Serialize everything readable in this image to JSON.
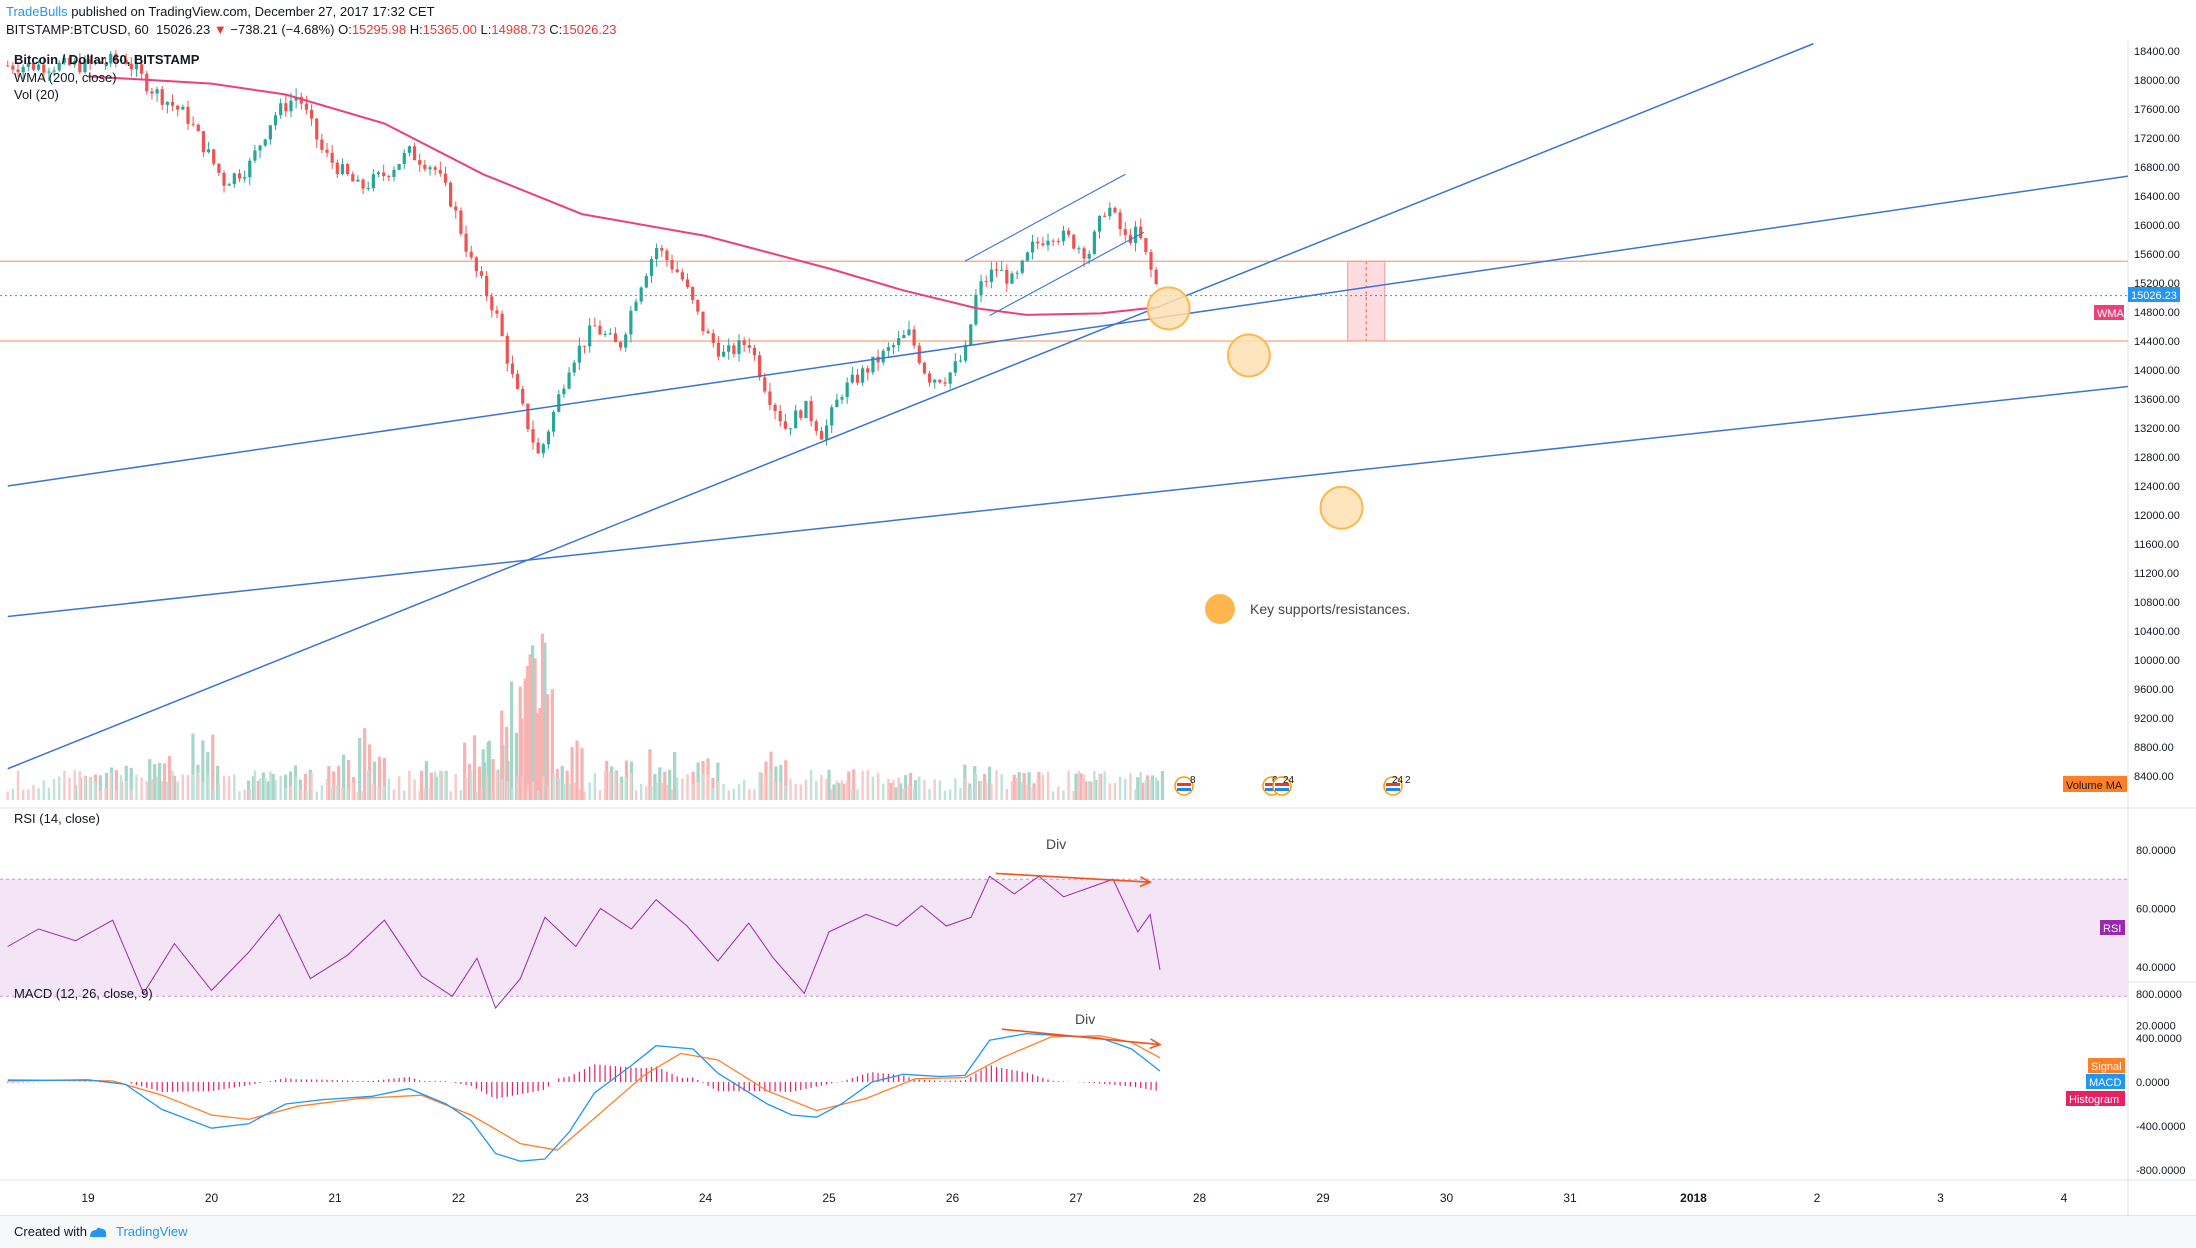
{
  "header": {
    "publisher": "TradeBulls",
    "published_text": "published on TradingView.com, December 27, 2017 17:32 CET",
    "symbol": "BITSTAMP:BTCUSD, 60",
    "last_price": "15026.23",
    "change_arrow": "▼",
    "change_text": "−738.21 (−4.68%)",
    "open_label": "O:",
    "open_value": "15295.98",
    "high_label": "H:",
    "high_value": "15365.00",
    "low_label": "L:",
    "low_value": "14988.73",
    "close_label": "C:",
    "close_value": "15026.23"
  },
  "legend": {
    "title": "Bitcoin / Dollar, 60, BITSTAMP",
    "wma": "WMA (200, close)",
    "vol": "Vol (20)",
    "rsi": "RSI (14, close)",
    "macd": "MACD (12, 26, close, 9)"
  },
  "annotations": {
    "key_levels": "Key supports/resistances.",
    "rsi_div": "Div",
    "macd_div": "Div"
  },
  "badges": {
    "last_price": "15026.23",
    "wma": "WMA",
    "volume_ma": "Volume MA",
    "rsi": "RSI",
    "signal": "Signal",
    "macd": "MACD",
    "histogram": "Histogram"
  },
  "events": [
    "8",
    "6",
    "24",
    "24",
    "2"
  ],
  "footer": {
    "created_with": "Created with",
    "brand": "TradingView"
  },
  "colors": {
    "up": "#26a69a",
    "down": "#ef5350",
    "wma": "#ec407a",
    "trend": "#3b73d6",
    "hline": "#f4a27c",
    "rsi": "#9c27b0",
    "rsi_bg": "#f3e5f5",
    "macd": "#2196f3",
    "signal": "#ff7f27",
    "hist": "#e91e63",
    "circle": "#ffb74d"
  },
  "chart_data": [
    {
      "type": "candlestick",
      "title": "Bitcoin / Dollar, 60, BITSTAMP",
      "x_tick_labels": [
        "19",
        "20",
        "21",
        "22",
        "23",
        "24",
        "25",
        "26",
        "27",
        "28",
        "29",
        "30",
        "31",
        "2018",
        "2",
        "3",
        "4"
      ],
      "y_tick_labels": [
        "18400.00",
        "18000.00",
        "17600.00",
        "17200.00",
        "16800.00",
        "16400.00",
        "16000.00",
        "15600.00",
        "15200.00",
        "14800.00",
        "14400.00",
        "14000.00",
        "13600.00",
        "13200.00",
        "12800.00",
        "12400.00",
        "12000.00",
        "11600.00",
        "11200.00",
        "10800.00",
        "10400.00",
        "10000.00",
        "9600.00",
        "9200.00",
        "8800.00",
        "8400.00"
      ],
      "ylim": [
        8400,
        18400
      ],
      "close_path": [
        {
          "x": 19.0,
          "y": 18200
        },
        {
          "x": 19.3,
          "y": 18300
        },
        {
          "x": 19.5,
          "y": 17900
        },
        {
          "x": 19.8,
          "y": 17500
        },
        {
          "x": 20.1,
          "y": 16600
        },
        {
          "x": 20.3,
          "y": 16800
        },
        {
          "x": 20.5,
          "y": 17500
        },
        {
          "x": 20.7,
          "y": 17800
        },
        {
          "x": 20.9,
          "y": 17000
        },
        {
          "x": 21.2,
          "y": 16500
        },
        {
          "x": 21.4,
          "y": 16700
        },
        {
          "x": 21.6,
          "y": 17000
        },
        {
          "x": 21.8,
          "y": 16800
        },
        {
          "x": 21.95,
          "y": 16300
        },
        {
          "x": 22.1,
          "y": 15500
        },
        {
          "x": 22.3,
          "y": 14800
        },
        {
          "x": 22.45,
          "y": 13800
        },
        {
          "x": 22.55,
          "y": 13300
        },
        {
          "x": 22.65,
          "y": 12800
        },
        {
          "x": 22.75,
          "y": 13300
        },
        {
          "x": 22.9,
          "y": 14100
        },
        {
          "x": 23.1,
          "y": 14600
        },
        {
          "x": 23.3,
          "y": 14300
        },
        {
          "x": 23.45,
          "y": 15100
        },
        {
          "x": 23.6,
          "y": 15700
        },
        {
          "x": 23.8,
          "y": 15300
        },
        {
          "x": 24.0,
          "y": 14500
        },
        {
          "x": 24.15,
          "y": 14200
        },
        {
          "x": 24.35,
          "y": 14400
        },
        {
          "x": 24.5,
          "y": 13700
        },
        {
          "x": 24.65,
          "y": 13200
        },
        {
          "x": 24.8,
          "y": 13500
        },
        {
          "x": 24.95,
          "y": 13100
        },
        {
          "x": 25.1,
          "y": 13700
        },
        {
          "x": 25.3,
          "y": 14000
        },
        {
          "x": 25.5,
          "y": 14300
        },
        {
          "x": 25.65,
          "y": 14500
        },
        {
          "x": 25.8,
          "y": 13900
        },
        {
          "x": 25.95,
          "y": 13900
        },
        {
          "x": 26.1,
          "y": 14200
        },
        {
          "x": 26.2,
          "y": 15100
        },
        {
          "x": 26.35,
          "y": 15400
        },
        {
          "x": 26.5,
          "y": 15200
        },
        {
          "x": 26.65,
          "y": 15700
        },
        {
          "x": 26.8,
          "y": 15900
        },
        {
          "x": 26.95,
          "y": 15800
        },
        {
          "x": 27.1,
          "y": 15600
        },
        {
          "x": 27.25,
          "y": 16300
        },
        {
          "x": 27.4,
          "y": 15800
        },
        {
          "x": 27.5,
          "y": 15900
        },
        {
          "x": 27.6,
          "y": 15400
        },
        {
          "x": 27.68,
          "y": 15026
        }
      ],
      "wma_200": [
        {
          "x": 19.0,
          "y": 18050
        },
        {
          "x": 20.0,
          "y": 17950
        },
        {
          "x": 20.6,
          "y": 17800
        },
        {
          "x": 21.4,
          "y": 17400
        },
        {
          "x": 22.2,
          "y": 16700
        },
        {
          "x": 23.0,
          "y": 16150
        },
        {
          "x": 24.0,
          "y": 15850
        },
        {
          "x": 25.0,
          "y": 15400
        },
        {
          "x": 25.6,
          "y": 15100
        },
        {
          "x": 26.2,
          "y": 14850
        },
        {
          "x": 26.6,
          "y": 14760
        },
        {
          "x": 27.2,
          "y": 14780
        },
        {
          "x": 27.68,
          "y": 14870
        }
      ],
      "horizontal_levels": [
        15500,
        14400
      ],
      "last_price_level": 15026.23,
      "trend_lines": [
        {
          "from": {
            "x": 18.35,
            "y": 8500
          },
          "to": {
            "x": 28.0,
            "y": 15100
          }
        },
        {
          "from": {
            "x": 18.35,
            "y": 12400
          },
          "to": {
            "x": 30.8,
            "y": 15500
          }
        },
        {
          "from": {
            "x": 18.35,
            "y": 10600
          },
          "to": {
            "x": 30.8,
            "y": 12900
          }
        }
      ],
      "channel_lines": [
        {
          "from": {
            "x": 26.1,
            "y": 15500
          },
          "to": {
            "x": 27.4,
            "y": 16700
          }
        },
        {
          "from": {
            "x": 26.3,
            "y": 14750
          },
          "to": {
            "x": 27.55,
            "y": 15900
          }
        }
      ],
      "key_level_circles": [
        {
          "x": 27.75,
          "y": 14850
        },
        {
          "x": 28.4,
          "y": 14200
        },
        {
          "x": 29.15,
          "y": 12100
        }
      ],
      "target_box": {
        "x": [
          29.2,
          29.5
        ],
        "y": [
          14400,
          15500
        ]
      }
    },
    {
      "type": "bar",
      "title": "Vol (20)",
      "bars": [
        {
          "x": 19.0,
          "v": 0.35,
          "dir": "down"
        },
        {
          "x": 19.25,
          "v": 0.45,
          "dir": "down"
        },
        {
          "x": 19.6,
          "v": 0.65,
          "dir": "down"
        },
        {
          "x": 19.95,
          "v": 0.85,
          "dir": "down"
        },
        {
          "x": 20.4,
          "v": 0.4,
          "dir": "up"
        },
        {
          "x": 20.7,
          "v": 0.55,
          "dir": "down"
        },
        {
          "x": 21.05,
          "v": 0.6,
          "dir": "down"
        },
        {
          "x": 21.3,
          "v": 0.95,
          "dir": "up"
        },
        {
          "x": 21.8,
          "v": 0.5,
          "dir": "down"
        },
        {
          "x": 22.15,
          "v": 0.9,
          "dir": "down"
        },
        {
          "x": 22.3,
          "v": 0.75,
          "dir": "up"
        },
        {
          "x": 22.45,
          "v": 1.6,
          "dir": "up"
        },
        {
          "x": 22.6,
          "v": 2.0,
          "dir": "down"
        },
        {
          "x": 22.66,
          "v": 2.4,
          "dir": "down"
        },
        {
          "x": 22.9,
          "v": 0.8,
          "dir": "up"
        },
        {
          "x": 23.3,
          "v": 0.5,
          "dir": "up"
        },
        {
          "x": 23.65,
          "v": 0.7,
          "dir": "up"
        },
        {
          "x": 24.0,
          "v": 0.55,
          "dir": "down"
        },
        {
          "x": 24.55,
          "v": 0.65,
          "dir": "down"
        },
        {
          "x": 25.1,
          "v": 0.4,
          "dir": "up"
        },
        {
          "x": 25.6,
          "v": 0.35,
          "dir": "up"
        },
        {
          "x": 26.2,
          "v": 0.45,
          "dir": "up"
        },
        {
          "x": 26.6,
          "v": 0.4,
          "dir": "up"
        },
        {
          "x": 27.1,
          "v": 0.35,
          "dir": "down"
        },
        {
          "x": 27.6,
          "v": 0.4,
          "dir": "down"
        }
      ]
    },
    {
      "type": "line",
      "title": "RSI (14, close)",
      "y_tick_labels": [
        "80.0000",
        "60.0000",
        "40.0000",
        "20.0000"
      ],
      "ylim": [
        20,
        80
      ],
      "band": [
        30,
        70
      ],
      "series": [
        {
          "values": [
            {
              "x": 18.35,
              "y": 47
            },
            {
              "x": 18.6,
              "y": 53
            },
            {
              "x": 18.9,
              "y": 49
            },
            {
              "x": 19.2,
              "y": 56
            },
            {
              "x": 19.45,
              "y": 31
            },
            {
              "x": 19.7,
              "y": 48
            },
            {
              "x": 20.0,
              "y": 32
            },
            {
              "x": 20.3,
              "y": 45
            },
            {
              "x": 20.55,
              "y": 58
            },
            {
              "x": 20.8,
              "y": 36
            },
            {
              "x": 21.1,
              "y": 44
            },
            {
              "x": 21.4,
              "y": 56
            },
            {
              "x": 21.7,
              "y": 37
            },
            {
              "x": 21.95,
              "y": 30
            },
            {
              "x": 22.15,
              "y": 43
            },
            {
              "x": 22.3,
              "y": 26
            },
            {
              "x": 22.5,
              "y": 36
            },
            {
              "x": 22.7,
              "y": 57
            },
            {
              "x": 22.95,
              "y": 47
            },
            {
              "x": 23.15,
              "y": 60
            },
            {
              "x": 23.4,
              "y": 53
            },
            {
              "x": 23.6,
              "y": 63
            },
            {
              "x": 23.85,
              "y": 54
            },
            {
              "x": 24.1,
              "y": 42
            },
            {
              "x": 24.35,
              "y": 55
            },
            {
              "x": 24.55,
              "y": 43
            },
            {
              "x": 24.8,
              "y": 31
            },
            {
              "x": 25.0,
              "y": 52
            },
            {
              "x": 25.3,
              "y": 58
            },
            {
              "x": 25.55,
              "y": 54
            },
            {
              "x": 25.75,
              "y": 61
            },
            {
              "x": 25.95,
              "y": 54
            },
            {
              "x": 26.15,
              "y": 57
            },
            {
              "x": 26.3,
              "y": 71
            },
            {
              "x": 26.5,
              "y": 65
            },
            {
              "x": 26.7,
              "y": 71
            },
            {
              "x": 26.9,
              "y": 64
            },
            {
              "x": 27.1,
              "y": 67
            },
            {
              "x": 27.3,
              "y": 70
            },
            {
              "x": 27.5,
              "y": 52
            },
            {
              "x": 27.6,
              "y": 58
            },
            {
              "x": 27.68,
              "y": 39
            }
          ]
        }
      ],
      "divergence_line": {
        "from": {
          "x": 26.35,
          "y": 72
        },
        "to": {
          "x": 27.6,
          "y": 69
        }
      }
    },
    {
      "type": "line",
      "title": "MACD (12, 26, close, 9)",
      "y_tick_labels": [
        "800.0000",
        "400.0000",
        "0.0000",
        "-400.0000",
        "-800.0000"
      ],
      "ylim": [
        -800,
        800
      ],
      "series": [
        {
          "name": "MACD",
          "values": [
            {
              "x": 18.35,
              "y": 10
            },
            {
              "x": 19.0,
              "y": 20
            },
            {
              "x": 19.3,
              "y": -20
            },
            {
              "x": 19.6,
              "y": -250
            },
            {
              "x": 20.0,
              "y": -420
            },
            {
              "x": 20.3,
              "y": -380
            },
            {
              "x": 20.6,
              "y": -200
            },
            {
              "x": 20.9,
              "y": -160
            },
            {
              "x": 21.3,
              "y": -130
            },
            {
              "x": 21.6,
              "y": -60
            },
            {
              "x": 21.9,
              "y": -200
            },
            {
              "x": 22.1,
              "y": -350
            },
            {
              "x": 22.3,
              "y": -650
            },
            {
              "x": 22.5,
              "y": -720
            },
            {
              "x": 22.7,
              "y": -700
            },
            {
              "x": 22.9,
              "y": -450
            },
            {
              "x": 23.1,
              "y": -100
            },
            {
              "x": 23.4,
              "y": 150
            },
            {
              "x": 23.6,
              "y": 330
            },
            {
              "x": 23.9,
              "y": 300
            },
            {
              "x": 24.1,
              "y": 80
            },
            {
              "x": 24.3,
              "y": -60
            },
            {
              "x": 24.5,
              "y": -200
            },
            {
              "x": 24.7,
              "y": -300
            },
            {
              "x": 24.9,
              "y": -320
            },
            {
              "x": 25.1,
              "y": -200
            },
            {
              "x": 25.35,
              "y": 0
            },
            {
              "x": 25.6,
              "y": 70
            },
            {
              "x": 25.9,
              "y": 50
            },
            {
              "x": 26.1,
              "y": 60
            },
            {
              "x": 26.3,
              "y": 380
            },
            {
              "x": 26.6,
              "y": 440
            },
            {
              "x": 26.9,
              "y": 420
            },
            {
              "x": 27.2,
              "y": 400
            },
            {
              "x": 27.45,
              "y": 300
            },
            {
              "x": 27.68,
              "y": 100
            }
          ]
        },
        {
          "name": "Signal",
          "values": [
            {
              "x": 18.35,
              "y": 20
            },
            {
              "x": 19.2,
              "y": 10
            },
            {
              "x": 19.6,
              "y": -120
            },
            {
              "x": 20.0,
              "y": -300
            },
            {
              "x": 20.3,
              "y": -340
            },
            {
              "x": 20.7,
              "y": -220
            },
            {
              "x": 21.2,
              "y": -150
            },
            {
              "x": 21.7,
              "y": -120
            },
            {
              "x": 22.1,
              "y": -300
            },
            {
              "x": 22.5,
              "y": -560
            },
            {
              "x": 22.8,
              "y": -620
            },
            {
              "x": 23.1,
              "y": -330
            },
            {
              "x": 23.5,
              "y": 60
            },
            {
              "x": 23.8,
              "y": 260
            },
            {
              "x": 24.1,
              "y": 200
            },
            {
              "x": 24.5,
              "y": -80
            },
            {
              "x": 24.9,
              "y": -260
            },
            {
              "x": 25.3,
              "y": -150
            },
            {
              "x": 25.7,
              "y": 30
            },
            {
              "x": 26.1,
              "y": 40
            },
            {
              "x": 26.4,
              "y": 220
            },
            {
              "x": 26.8,
              "y": 410
            },
            {
              "x": 27.2,
              "y": 420
            },
            {
              "x": 27.45,
              "y": 360
            },
            {
              "x": 27.68,
              "y": 220
            }
          ]
        }
      ],
      "divergence_line": {
        "from": {
          "x": 26.4,
          "y": 480
        },
        "to": {
          "x": 27.68,
          "y": 340
        }
      }
    }
  ]
}
